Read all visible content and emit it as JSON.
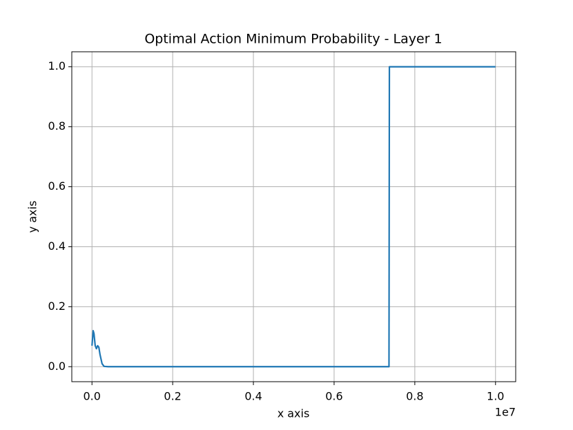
{
  "chart_data": {
    "type": "line",
    "title": "Optimal Action Minimum Probability - Layer 1",
    "x_label": "x axis",
    "y_label": "y axis",
    "x_offset_label": "1e7",
    "x": [
      0,
      30000,
      50000,
      80000,
      110000,
      140000,
      170000,
      200000,
      250000,
      300000,
      400000,
      1000000,
      7360000,
      7370000,
      10000000
    ],
    "values": [
      0.07,
      0.12,
      0.11,
      0.07,
      0.06,
      0.07,
      0.065,
      0.04,
      0.01,
      0.001,
      0,
      0,
      0,
      1,
      1
    ],
    "color": "#1f77b4",
    "xlim": [
      -500000,
      10500000
    ],
    "xticks": [
      {
        "value": 0,
        "label": "0.0"
      },
      {
        "value": 2000000,
        "label": "0.2"
      },
      {
        "value": 4000000,
        "label": "0.4"
      },
      {
        "value": 6000000,
        "label": "0.6"
      },
      {
        "value": 8000000,
        "label": "0.8"
      },
      {
        "value": 10000000,
        "label": "1.0"
      }
    ],
    "ylim": [
      -0.05,
      1.05
    ],
    "yticks": [
      {
        "value": 0,
        "label": "0.0"
      },
      0.2,
      0.4,
      0.6,
      0.8,
      {
        "value": 1,
        "label": "1.0"
      }
    ],
    "grid": true
  }
}
